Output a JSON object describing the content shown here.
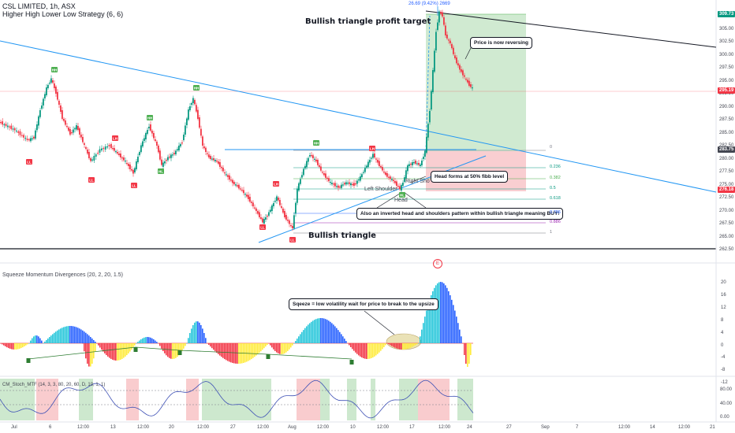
{
  "header": {
    "symbol_line": "CSL LIMITED, 1h, ASX",
    "strategy_line": "Higher High Lower Low Strategy (6, 6)"
  },
  "annotations": {
    "profit_target": "Bullish triangle profit target",
    "bullish_triangle": "Bullish triangle",
    "price_reversing": "Price is now reversing",
    "head_fibb": "Head forms at 50% fibb level",
    "inverted_hs": "Also an inverted head and shoulders pattern within bullish triangle meaning BUY!",
    "squeeze_note": "Sqeeze = low volatility wait for price to break to the upsize",
    "left_shoulder": "Left Shoulder",
    "right_shoulder": "Right Sho",
    "head": "Head",
    "target_measure": "26.69 (9.42%) 2669"
  },
  "price_axis": {
    "ticks": [
      "307.50",
      "305.00",
      "302.50",
      "300.00",
      "297.50",
      "295.00",
      "292.50",
      "290.00",
      "287.50",
      "285.00",
      "282.50",
      "280.00",
      "277.50",
      "275.00",
      "272.50",
      "270.00",
      "267.50",
      "265.00",
      "262.50"
    ],
    "price_labels": [
      {
        "text": "309.73",
        "color": "#089981"
      },
      {
        "text": "295.19",
        "color": "#f23645"
      },
      {
        "text": "283.75",
        "color": "#434651"
      },
      {
        "text": "276.18",
        "color": "#f23645"
      }
    ]
  },
  "fib_levels": [
    {
      "label": "0",
      "color": "#787b86"
    },
    {
      "label": "0.236",
      "color": "#089981"
    },
    {
      "label": "0.382",
      "color": "#4caf50"
    },
    {
      "label": "0.5",
      "color": "#089981"
    },
    {
      "label": "0.618",
      "color": "#089981"
    },
    {
      "label": "0.786",
      "color": "#2962ff"
    },
    {
      "label": "0.886",
      "color": "#9c27b0"
    },
    {
      "label": "1",
      "color": "#787b86"
    }
  ],
  "pivots": [
    "HH",
    "LL",
    "LL",
    "LH",
    "LL",
    "HH",
    "HL",
    "HH",
    "LH",
    "LL",
    "HH",
    "LH",
    "HL",
    "LL"
  ],
  "squeeze": {
    "title": "Squeeze Momentum Divergences (20, 2, 20, 1.5)",
    "ticks": [
      "20",
      "16",
      "12",
      "8",
      "4",
      "0",
      "-4",
      "-8",
      "-12"
    ]
  },
  "stoch": {
    "title": "CM_Stoch_MTF (14, 3, 3, 80, 20, 60, D, 10, 1, 1)",
    "ticks": [
      "80.00",
      "40.00",
      "0.00"
    ]
  },
  "time_axis": [
    "Jul",
    "6",
    "12:00",
    "13",
    "12:00",
    "20",
    "12:00",
    "27",
    "12:00",
    "Aug",
    "12:00",
    "10",
    "12:00",
    "17",
    "12:00",
    "24",
    "27",
    "Sep",
    "7",
    "12:00",
    "14",
    "12:00",
    "21"
  ],
  "colors": {
    "up": "#089981",
    "down": "#f23645",
    "trend_blue": "#2196f3",
    "green_zone": "#c8e6c9",
    "red_zone": "#f8c6c9"
  },
  "icons": {
    "earnings": "E"
  }
}
